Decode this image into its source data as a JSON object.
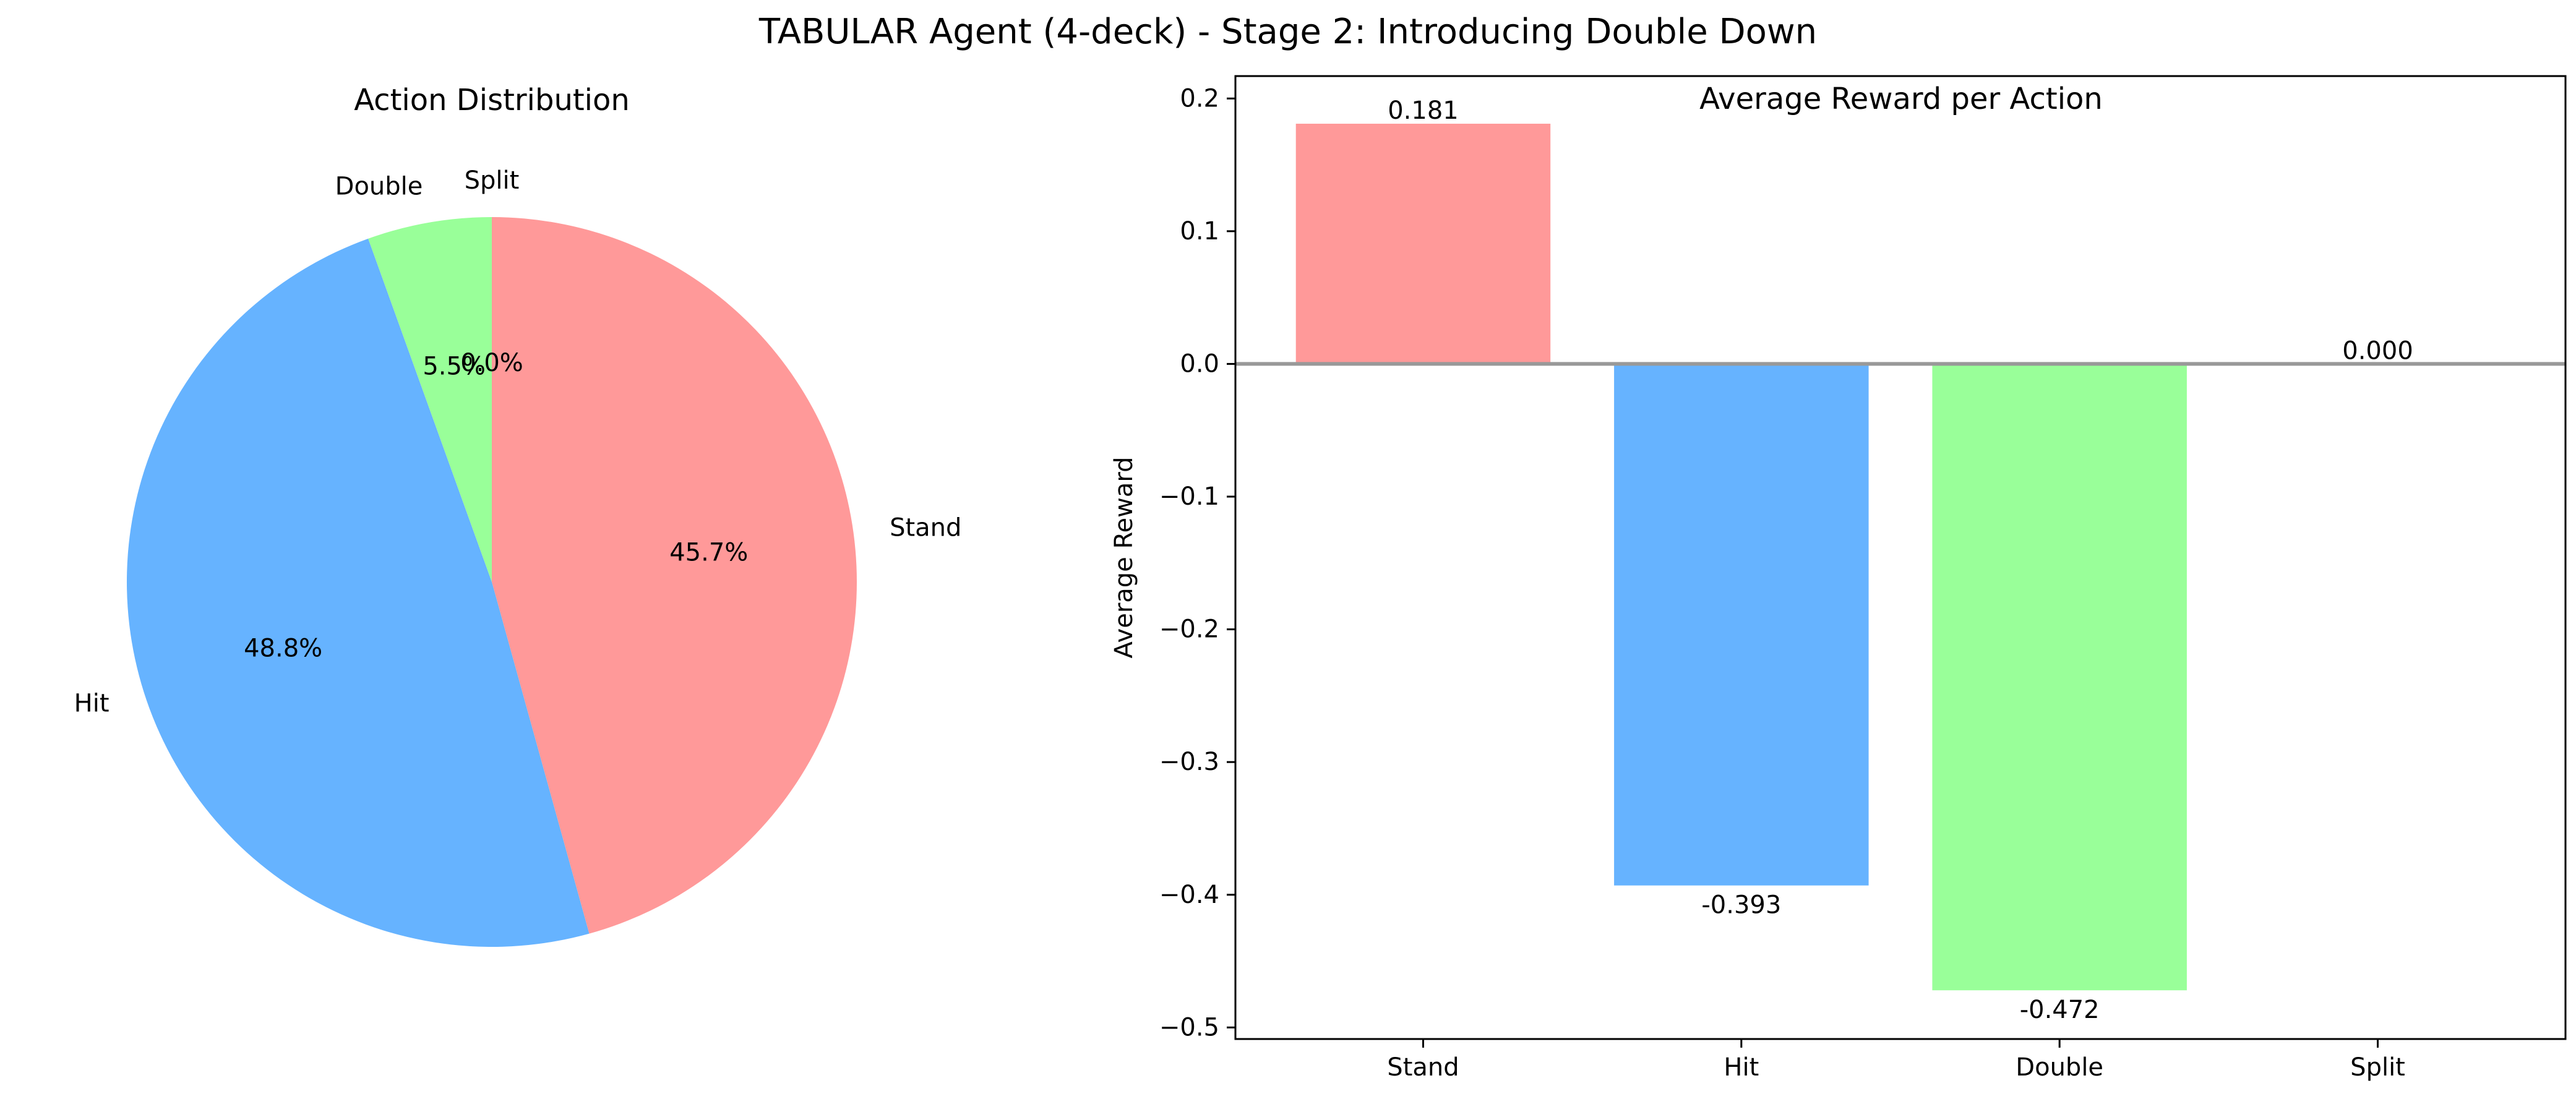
{
  "figure": {
    "title": "TABULAR Agent (4-deck) - Stage 2: Introducing Double Down"
  },
  "chart_data": [
    {
      "type": "pie",
      "title": "Action Distribution",
      "categories": [
        "Stand",
        "Hit",
        "Double",
        "Split"
      ],
      "values": [
        45.7,
        48.8,
        5.5,
        0.0
      ],
      "value_labels": [
        "45.7%",
        "48.8%",
        "5.5%",
        "0.0%"
      ],
      "colors": [
        "#ff9999",
        "#66b3ff",
        "#99ff99",
        "#ffcc99"
      ],
      "start_angle_deg": 90,
      "direction": "clockwise"
    },
    {
      "type": "bar",
      "title": "Average Reward per Action",
      "xlabel": "",
      "ylabel": "Average Reward",
      "categories": [
        "Stand",
        "Hit",
        "Double",
        "Split"
      ],
      "values": [
        0.181,
        -0.393,
        -0.472,
        0.0
      ],
      "value_labels": [
        "0.181",
        "-0.393",
        "-0.472",
        "0.000"
      ],
      "colors": [
        "#ff9999",
        "#66b3ff",
        "#99ff99",
        "#ffcc99"
      ],
      "ylim": [
        -0.5087,
        0.2169
      ],
      "yticks": [
        0.2,
        0.1,
        0.0,
        -0.1,
        -0.2,
        -0.3,
        -0.4,
        -0.5
      ],
      "ytick_labels": [
        "0.2",
        "0.1",
        "0.0",
        "−0.1",
        "−0.2",
        "−0.3",
        "−0.4",
        "−0.5"
      ],
      "zero_line_color": "#999999",
      "grid": false
    }
  ]
}
